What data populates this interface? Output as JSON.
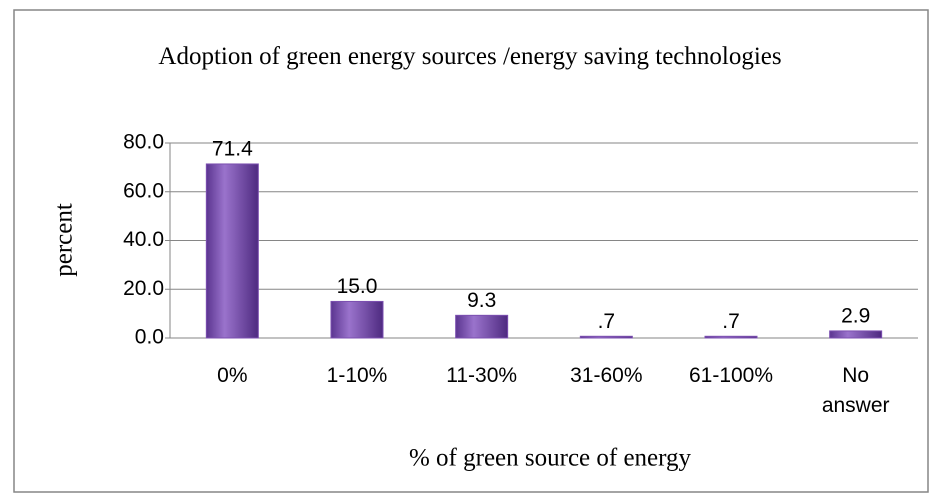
{
  "chart_data": {
    "type": "bar",
    "title": "Adoption of green energy sources /energy saving technologies",
    "categories": [
      "0%",
      "1-10%",
      "11-30%",
      "31-60%",
      "61-100%",
      "No answer"
    ],
    "values": [
      71.4,
      15.0,
      9.3,
      0.7,
      0.7,
      2.9
    ],
    "value_labels": [
      "71.4",
      "15.0",
      "9.3",
      ".7",
      ".7",
      "2.9"
    ],
    "color": "#7b4fb0",
    "ylabel": "percent",
    "xlabel": "% of green source of energy",
    "ylim": [
      0,
      80
    ],
    "yticks": [
      {
        "value": 0,
        "label": "0.0"
      },
      {
        "value": 20,
        "label": "20.0"
      },
      {
        "value": 40,
        "label": "40.0"
      },
      {
        "value": 60,
        "label": "60.0"
      },
      {
        "value": 80,
        "label": "80.0"
      }
    ],
    "grid": true
  }
}
